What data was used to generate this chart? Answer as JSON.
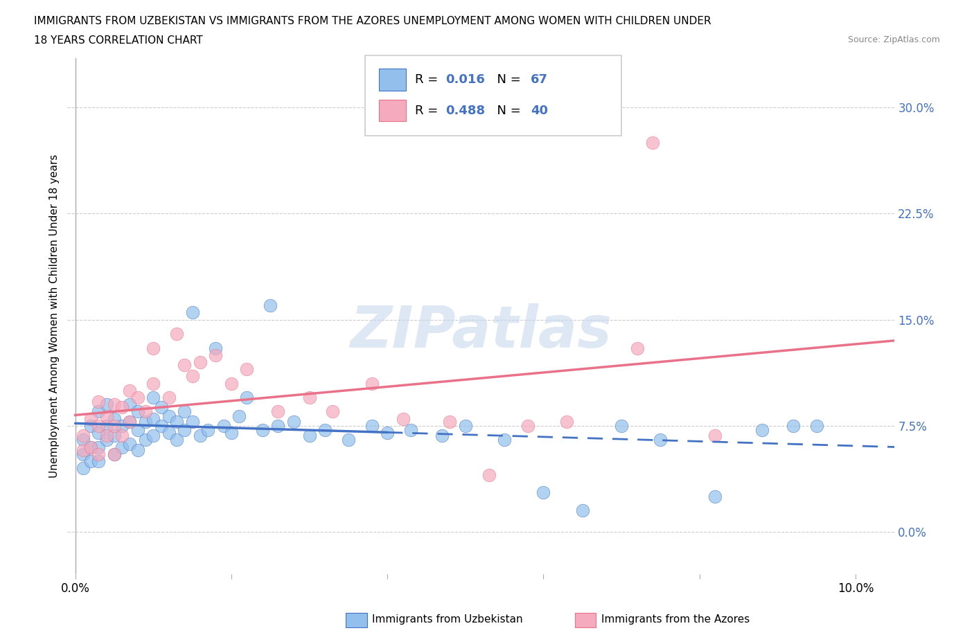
{
  "title_line1": "IMMIGRANTS FROM UZBEKISTAN VS IMMIGRANTS FROM THE AZORES UNEMPLOYMENT AMONG WOMEN WITH CHILDREN UNDER",
  "title_line2": "18 YEARS CORRELATION CHART",
  "source": "Source: ZipAtlas.com",
  "ylabel": "Unemployment Among Women with Children Under 18 years",
  "xlim": [
    0.0,
    0.105
  ],
  "ylim": [
    -0.03,
    0.335
  ],
  "yticks": [
    0.0,
    0.075,
    0.15,
    0.225,
    0.3
  ],
  "ytick_labels": [
    "0.0%",
    "7.5%",
    "15.0%",
    "22.5%",
    "30.0%"
  ],
  "xticks": [
    0.0,
    0.02,
    0.04,
    0.06,
    0.08,
    0.1
  ],
  "xtick_labels": [
    "0.0%",
    "",
    "",
    "",
    "",
    "10.0%"
  ],
  "color_uzbekistan": "#92BFEC",
  "color_azores": "#F5AABD",
  "color_uzbekistan_line": "#4472C4",
  "color_azores_line": "#E9718A",
  "R_uzbekistan": 0.016,
  "N_uzbekistan": 67,
  "R_azores": 0.488,
  "N_azores": 40,
  "legend_label_uzbekistan": "Immigrants from Uzbekistan",
  "legend_label_azores": "Immigrants from the Azores",
  "watermark": "ZIPatlas",
  "uzbekistan_x": [
    0.001,
    0.001,
    0.001,
    0.002,
    0.002,
    0.002,
    0.003,
    0.003,
    0.003,
    0.003,
    0.004,
    0.004,
    0.004,
    0.005,
    0.005,
    0.005,
    0.006,
    0.006,
    0.007,
    0.007,
    0.007,
    0.008,
    0.008,
    0.008,
    0.009,
    0.009,
    0.01,
    0.01,
    0.01,
    0.011,
    0.011,
    0.012,
    0.012,
    0.013,
    0.013,
    0.014,
    0.014,
    0.015,
    0.015,
    0.016,
    0.017,
    0.018,
    0.019,
    0.02,
    0.021,
    0.022,
    0.024,
    0.025,
    0.026,
    0.028,
    0.03,
    0.032,
    0.035,
    0.038,
    0.04,
    0.043,
    0.047,
    0.05,
    0.055,
    0.06,
    0.065,
    0.07,
    0.075,
    0.082,
    0.088,
    0.092,
    0.095
  ],
  "uzbekistan_y": [
    0.065,
    0.055,
    0.045,
    0.075,
    0.06,
    0.05,
    0.085,
    0.07,
    0.06,
    0.05,
    0.09,
    0.075,
    0.065,
    0.08,
    0.068,
    0.055,
    0.075,
    0.06,
    0.09,
    0.078,
    0.062,
    0.085,
    0.072,
    0.058,
    0.078,
    0.065,
    0.095,
    0.08,
    0.068,
    0.088,
    0.075,
    0.082,
    0.07,
    0.078,
    0.065,
    0.085,
    0.072,
    0.155,
    0.078,
    0.068,
    0.072,
    0.13,
    0.075,
    0.07,
    0.082,
    0.095,
    0.072,
    0.16,
    0.075,
    0.078,
    0.068,
    0.072,
    0.065,
    0.075,
    0.07,
    0.072,
    0.068,
    0.075,
    0.065,
    0.028,
    0.015,
    0.075,
    0.065,
    0.025,
    0.072,
    0.075,
    0.075
  ],
  "azores_x": [
    0.001,
    0.001,
    0.002,
    0.002,
    0.003,
    0.003,
    0.003,
    0.004,
    0.004,
    0.005,
    0.005,
    0.005,
    0.006,
    0.006,
    0.007,
    0.007,
    0.008,
    0.009,
    0.01,
    0.01,
    0.012,
    0.013,
    0.014,
    0.015,
    0.016,
    0.018,
    0.02,
    0.022,
    0.026,
    0.03,
    0.033,
    0.038,
    0.042,
    0.048,
    0.053,
    0.058,
    0.063,
    0.072,
    0.074,
    0.082
  ],
  "azores_y": [
    0.068,
    0.058,
    0.08,
    0.06,
    0.092,
    0.075,
    0.055,
    0.082,
    0.068,
    0.09,
    0.075,
    0.055,
    0.088,
    0.068,
    0.1,
    0.078,
    0.095,
    0.085,
    0.13,
    0.105,
    0.095,
    0.14,
    0.118,
    0.11,
    0.12,
    0.125,
    0.105,
    0.115,
    0.085,
    0.095,
    0.085,
    0.105,
    0.08,
    0.078,
    0.04,
    0.075,
    0.078,
    0.13,
    0.275,
    0.068
  ]
}
